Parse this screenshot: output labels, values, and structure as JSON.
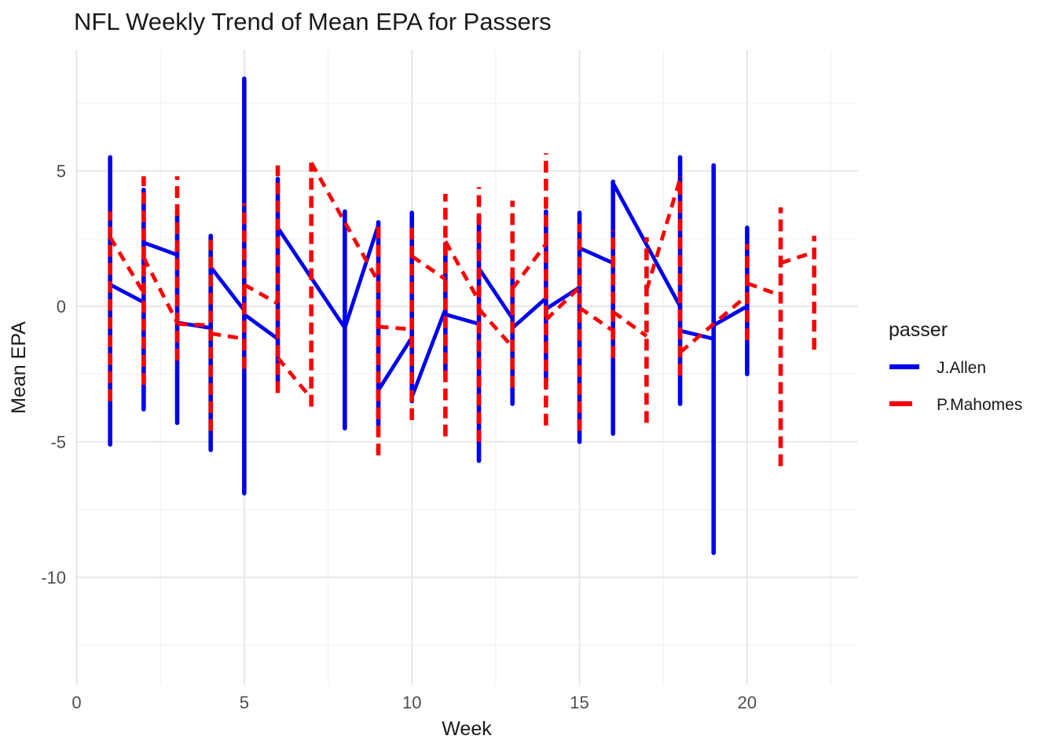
{
  "chart_data": {
    "type": "line",
    "title": "NFL Weekly Trend of Mean EPA for Passers",
    "xlabel": "Week",
    "ylabel": "Mean EPA",
    "xlim": [
      -0.05,
      23.3
    ],
    "ylim": [
      -14.0,
      9.45
    ],
    "grid": true,
    "x_ticks": [
      {
        "value": 0,
        "label": "0"
      },
      {
        "value": 5,
        "label": "5"
      },
      {
        "value": 10,
        "label": "10"
      },
      {
        "value": 15,
        "label": "15"
      },
      {
        "value": 20,
        "label": "20"
      }
    ],
    "x_minor_ticks": [
      2.5,
      7.5,
      12.5,
      17.5,
      22.5
    ],
    "y_ticks": [
      {
        "value": 5,
        "label": "5"
      },
      {
        "value": 0,
        "label": "0"
      },
      {
        "value": -5,
        "label": "-5"
      },
      {
        "value": -10,
        "label": "-10"
      }
    ],
    "y_minor_ticks": [
      7.5,
      2.5,
      -2.5,
      -7.5,
      -12.5
    ],
    "legend": {
      "title": "passer",
      "position": "right",
      "entries": [
        {
          "label": "J.Allen",
          "color": "#0000F0",
          "dash": "solid"
        },
        {
          "label": "P.Mahomes",
          "color": "#FA0000",
          "dash": "dashed"
        }
      ]
    },
    "series": [
      {
        "name": "J.Allen",
        "color": "#0000F0",
        "dash": "solid",
        "points": [
          {
            "week": 1,
            "lo": -5.1,
            "hi": 5.5,
            "entry": 0.8,
            "exit": 0.8
          },
          {
            "week": 2,
            "lo": -3.8,
            "hi": 4.3,
            "entry": 0.15,
            "exit": 2.35
          },
          {
            "week": 3,
            "lo": -4.3,
            "hi": 3.4,
            "entry": 1.9,
            "exit": -0.6
          },
          {
            "week": 4,
            "lo": -5.3,
            "hi": 2.6,
            "entry": -0.8,
            "exit": 1.45
          },
          {
            "week": 5,
            "lo": -6.9,
            "hi": 8.4,
            "entry": -0.15,
            "exit": -0.3
          },
          {
            "week": 6,
            "lo": -2.8,
            "hi": 4.7,
            "entry": -1.2,
            "exit": 2.9
          },
          {
            "week": 8,
            "lo": -4.5,
            "hi": 3.5,
            "entry": -0.8,
            "exit": -0.8
          },
          {
            "week": 9,
            "lo": -4.4,
            "hi": 3.1,
            "entry": 3.0,
            "exit": -3.1
          },
          {
            "week": 10,
            "lo": -3.5,
            "hi": 3.45,
            "entry": -1.15,
            "exit": -3.35
          },
          {
            "week": 11,
            "lo": -2.4,
            "hi": 2.3,
            "entry": -0.1,
            "exit": -0.3
          },
          {
            "week": 12,
            "lo": -5.7,
            "hi": 3.3,
            "entry": -0.65,
            "exit": 1.4
          },
          {
            "week": 13,
            "lo": -3.6,
            "hi": 1.2,
            "entry": -0.45,
            "exit": -0.8
          },
          {
            "week": 14,
            "lo": -3.0,
            "hi": 3.5,
            "entry": 0.3,
            "exit": -0.1
          },
          {
            "week": 15,
            "lo": -5.0,
            "hi": 3.45,
            "entry": 0.7,
            "exit": 2.15
          },
          {
            "week": 16,
            "lo": -4.7,
            "hi": 4.6,
            "entry": 1.6,
            "exit": 4.55
          },
          {
            "week": 18,
            "lo": -3.6,
            "hi": 5.5,
            "entry": 0.0,
            "exit": -0.9
          },
          {
            "week": 19,
            "lo": -9.1,
            "hi": 5.2,
            "entry": -1.2,
            "exit": -0.7
          },
          {
            "week": 20,
            "lo": -2.5,
            "hi": 2.9,
            "entry": 0.0,
            "exit": 0.0
          }
        ]
      },
      {
        "name": "P.Mahomes",
        "color": "#FA0000",
        "dash": "dashed",
        "points": [
          {
            "week": 1,
            "lo": -3.5,
            "hi": 3.5,
            "entry": 2.55,
            "exit": 2.55
          },
          {
            "week": 2,
            "lo": -2.9,
            "hi": 4.8,
            "entry": 0.5,
            "exit": 1.8
          },
          {
            "week": 3,
            "lo": -2.0,
            "hi": 4.8,
            "entry": -0.6,
            "exit": -0.65
          },
          {
            "week": 4,
            "lo": -4.6,
            "hi": 2.45,
            "entry": -0.7,
            "exit": -1.0
          },
          {
            "week": 5,
            "lo": -2.3,
            "hi": 3.8,
            "entry": -1.2,
            "exit": 0.8
          },
          {
            "week": 6,
            "lo": -3.2,
            "hi": 5.2,
            "entry": 0.1,
            "exit": -1.9
          },
          {
            "week": 7,
            "lo": -3.7,
            "hi": 5.3,
            "entry": -3.4,
            "exit": 5.3
          },
          {
            "week": 9,
            "lo": -5.5,
            "hi": 3.15,
            "entry": 0.9,
            "exit": -0.75
          },
          {
            "week": 10,
            "lo": -4.2,
            "hi": 3.1,
            "entry": -0.85,
            "exit": 1.85
          },
          {
            "week": 11,
            "lo": -4.8,
            "hi": 4.15,
            "entry": 1.0,
            "exit": 2.4
          },
          {
            "week": 12,
            "lo": -5.0,
            "hi": 4.4,
            "entry": 0.2,
            "exit": -0.1
          },
          {
            "week": 13,
            "lo": -3.0,
            "hi": 3.9,
            "entry": -1.5,
            "exit": 0.65
          },
          {
            "week": 14,
            "lo": -4.4,
            "hi": 5.65,
            "entry": 2.3,
            "exit": -0.5
          },
          {
            "week": 15,
            "lo": -4.6,
            "hi": 3.05,
            "entry": 0.7,
            "exit": -0.05
          },
          {
            "week": 16,
            "lo": -1.9,
            "hi": 2.8,
            "entry": -0.9,
            "exit": -0.2
          },
          {
            "week": 17,
            "lo": -4.3,
            "hi": 2.55,
            "entry": -1.1,
            "exit": 0.6
          },
          {
            "week": 18,
            "lo": -2.55,
            "hi": 4.8,
            "entry": 4.7,
            "exit": -1.7
          },
          {
            "week": 20,
            "lo": -1.25,
            "hi": 2.3,
            "entry": 0.4,
            "exit": 0.85
          },
          {
            "week": 21,
            "lo": -5.9,
            "hi": 3.65,
            "entry": 0.4,
            "exit": 1.6
          },
          {
            "week": 22,
            "lo": -1.6,
            "hi": 2.6,
            "entry": 2.0,
            "exit": 2.0
          }
        ]
      }
    ],
    "style": {
      "grid_major_color": "#E4E4E4",
      "grid_minor_color": "#EFEFEF",
      "background": "#FFFFFF"
    }
  }
}
